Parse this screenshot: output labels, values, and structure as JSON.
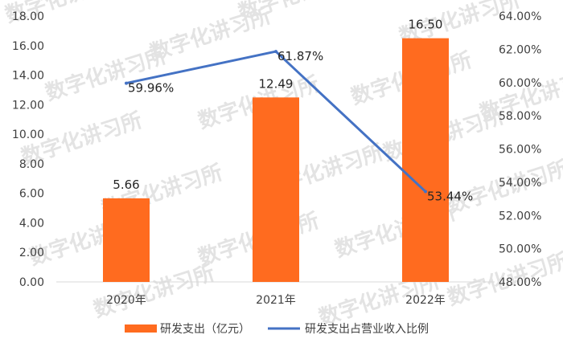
{
  "chart_data": {
    "type": "bar+line",
    "categories": [
      "2020年",
      "2021年",
      "2022年"
    ],
    "series": [
      {
        "name": "研发支出（亿元）",
        "type": "bar",
        "axis": "left",
        "values": [
          5.66,
          12.49,
          16.5
        ],
        "labels": [
          "5.66",
          "12.49",
          "16.50"
        ],
        "color": "#ff6b1f"
      },
      {
        "name": "研发支出占营业收入比例",
        "type": "line",
        "axis": "right",
        "values": [
          59.96,
          61.87,
          53.44
        ],
        "labels": [
          "59.96%",
          "61.87%",
          "53.44%"
        ],
        "color": "#4472c4"
      }
    ],
    "y_left": {
      "min": 0,
      "max": 18,
      "step": 2,
      "tick_labels": [
        "0.00",
        "2.00",
        "4.00",
        "6.00",
        "8.00",
        "10.00",
        "12.00",
        "14.00",
        "16.00",
        "18.00"
      ]
    },
    "y_right": {
      "min": 48,
      "max": 64,
      "step": 2,
      "tick_labels": [
        "48.00%",
        "50.00%",
        "52.00%",
        "54.00%",
        "56.00%",
        "58.00%",
        "60.00%",
        "62.00%",
        "64.00%"
      ]
    },
    "grid": false,
    "legend": "bottom",
    "watermark": "数字化讲习所"
  }
}
